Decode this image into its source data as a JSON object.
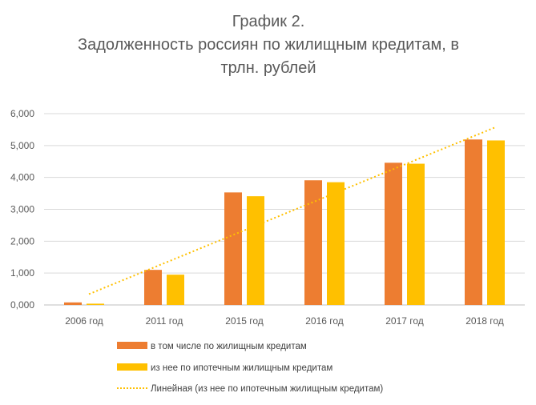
{
  "chart_data": {
    "type": "bar",
    "title_lines": [
      "График 2.",
      "Задолженность россиян по жилищным кредитам, в",
      "трлн. рублей"
    ],
    "categories": [
      "2006 год",
      "2011 год",
      "2015 год",
      "2016 год",
      "2017 год",
      "2018 год"
    ],
    "series": [
      {
        "name": "в том числе по жилищным кредитам",
        "color": "#ED7D31",
        "values": [
          0.08,
          1.1,
          3.53,
          3.91,
          4.46,
          5.19
        ]
      },
      {
        "name": "из нее по ипотечным жилищным кредитам",
        "color": "#FFC000",
        "values": [
          0.04,
          0.95,
          3.41,
          3.85,
          4.43,
          5.16
        ]
      }
    ],
    "trendline": {
      "name": "Линейная (из нее по ипотечным жилищным кредитам)",
      "color": "#FFC000",
      "style": "dotted",
      "start": 0.34,
      "end": 5.58
    },
    "y_ticks": [
      "0,000",
      "1,000",
      "2,000",
      "3,000",
      "4,000",
      "5,000",
      "6,000"
    ],
    "ylim": [
      0,
      6
    ],
    "grid": true,
    "legend_position": "bottom",
    "xlabel": "",
    "ylabel": ""
  }
}
